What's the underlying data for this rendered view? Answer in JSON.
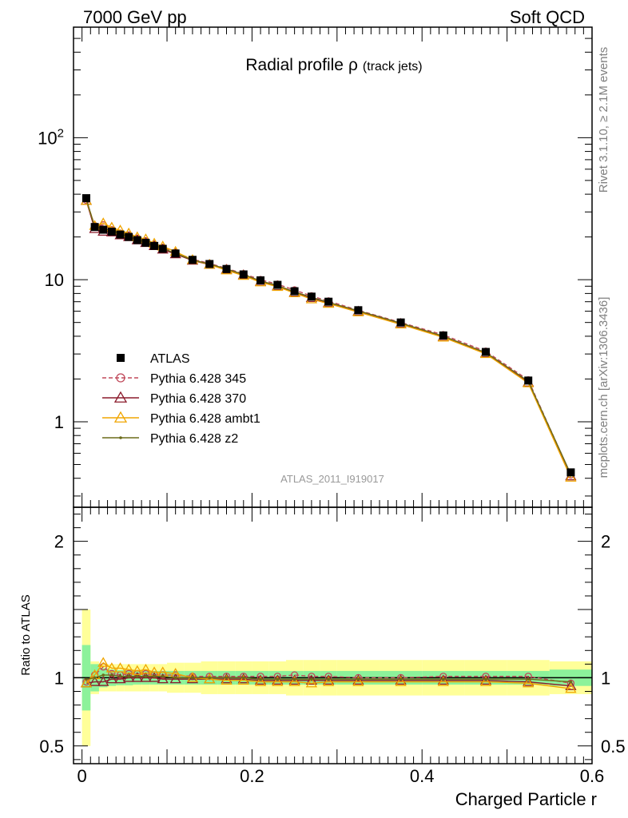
{
  "header": {
    "left": "7000 GeV pp",
    "right": "Soft QCD"
  },
  "side_labels": {
    "rivet": "Rivet 3.1.10, ≥ 2.1M events",
    "mcplots": "mcplots.cern.ch [arXiv:1306.3436]"
  },
  "chart_data": {
    "type": "line",
    "title": "Radial profile",
    "title_symbol": "ρ",
    "title_suffix": "(track jets)",
    "watermark": "ATLAS_2011_I919017",
    "xlabel": "Charged Particle r",
    "ylabel_ratio": "Ratio to ATLAS",
    "xlim": [
      -0.01,
      0.6
    ],
    "main_scale": "log",
    "ylim_main": [
      0.25,
      600
    ],
    "ylim_ratio": [
      0.37,
      2.25
    ],
    "x_ticks": [
      "0",
      "0.2",
      "0.4",
      "0.6"
    ],
    "main_ticks": [
      {
        "v": 100,
        "label": "10",
        "sup": "2"
      },
      {
        "v": 10,
        "label": "10",
        "sup": ""
      },
      {
        "v": 1,
        "label": "1",
        "sup": ""
      }
    ],
    "ratio_ticks": [
      "2",
      "1",
      "0.5"
    ],
    "legend_position": "middle-left",
    "x": [
      0.005,
      0.015,
      0.025,
      0.035,
      0.045,
      0.055,
      0.065,
      0.075,
      0.085,
      0.095,
      0.11,
      0.13,
      0.15,
      0.17,
      0.19,
      0.21,
      0.23,
      0.25,
      0.27,
      0.29,
      0.325,
      0.375,
      0.425,
      0.475,
      0.525,
      0.575
    ],
    "x_edges": [
      0.0,
      0.01,
      0.02,
      0.03,
      0.04,
      0.05,
      0.06,
      0.07,
      0.08,
      0.09,
      0.1,
      0.12,
      0.14,
      0.16,
      0.18,
      0.2,
      0.22,
      0.24,
      0.26,
      0.28,
      0.3,
      0.35,
      0.4,
      0.45,
      0.5,
      0.55,
      0.6
    ],
    "data": {
      "name": "ATLAS",
      "values": [
        37.5,
        23.5,
        22.5,
        21.8,
        20.8,
        20.0,
        19.0,
        18.2,
        17.3,
        16.5,
        15.3,
        13.8,
        12.9,
        11.9,
        10.9,
        9.9,
        9.2,
        8.3,
        7.6,
        7.0,
        6.1,
        5.0,
        4.05,
        3.1,
        1.95,
        0.44
      ],
      "band_inner": [
        0.24,
        0.1,
        0.07,
        0.06,
        0.055,
        0.055,
        0.05,
        0.05,
        0.05,
        0.05,
        0.05,
        0.05,
        0.05,
        0.05,
        0.05,
        0.05,
        0.05,
        0.05,
        0.05,
        0.05,
        0.05,
        0.05,
        0.05,
        0.05,
        0.05,
        0.06
      ],
      "band_outer": [
        0.5,
        0.12,
        0.1,
        0.1,
        0.1,
        0.1,
        0.1,
        0.1,
        0.1,
        0.1,
        0.11,
        0.11,
        0.12,
        0.12,
        0.12,
        0.12,
        0.12,
        0.13,
        0.13,
        0.13,
        0.13,
        0.13,
        0.13,
        0.13,
        0.13,
        0.12
      ]
    },
    "series": [
      {
        "name": "Pythia 6.428 345",
        "color": "#c0485a",
        "marker": "circle",
        "dashed": true,
        "ratio": [
          0.97,
          1.02,
          1.08,
          1.03,
          1.02,
          1.03,
          1.03,
          1.03,
          1.02,
          1.02,
          1.02,
          1.01,
          1.01,
          1.01,
          1.01,
          1.01,
          1.01,
          1.02,
          1.01,
          1.01,
          1.0,
          1.0,
          1.01,
          1.01,
          1.01,
          0.96
        ]
      },
      {
        "name": "Pythia 6.428 370",
        "color": "#8b1a2b",
        "marker": "triangle",
        "dashed": false,
        "ratio": [
          0.96,
          0.97,
          0.97,
          0.99,
          0.99,
          1.0,
          1.0,
          1.0,
          1.0,
          0.99,
          0.99,
          0.99,
          0.99,
          0.99,
          0.99,
          0.98,
          0.98,
          0.98,
          0.98,
          0.98,
          0.98,
          0.98,
          0.98,
          0.98,
          0.97,
          0.94
        ]
      },
      {
        "name": "Pythia 6.428 ambt1",
        "color": "#f0a500",
        "marker": "triangle",
        "dashed": false,
        "ratio": [
          0.96,
          1.02,
          1.11,
          1.07,
          1.07,
          1.06,
          1.05,
          1.06,
          1.04,
          1.04,
          1.03,
          1.0,
          0.99,
          0.98,
          0.98,
          0.97,
          0.97,
          0.97,
          0.96,
          0.97,
          0.97,
          0.97,
          0.97,
          0.97,
          0.96,
          0.92
        ]
      },
      {
        "name": "Pythia 6.428 z2",
        "color": "#6b6b1a",
        "marker": "dot",
        "dashed": false,
        "ratio": [
          0.99,
          1.0,
          1.02,
          1.02,
          1.01,
          1.01,
          1.01,
          1.01,
          1.01,
          1.01,
          1.0,
          1.0,
          1.0,
          1.0,
          1.0,
          0.99,
          0.99,
          0.99,
          0.99,
          0.99,
          0.99,
          0.99,
          0.99,
          0.99,
          0.99,
          0.97
        ]
      }
    ],
    "colors": {
      "band_inner": "#8cf29a",
      "band_outer": "#ffff99",
      "data": "#000000"
    }
  }
}
